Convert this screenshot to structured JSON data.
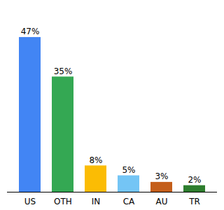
{
  "chart_data": {
    "type": "bar",
    "categories": [
      "US",
      "OTH",
      "IN",
      "CA",
      "AU",
      "TR"
    ],
    "values": [
      47,
      35,
      8,
      5,
      3,
      2
    ],
    "value_labels": [
      "47%",
      "35%",
      "8%",
      "5%",
      "3%",
      "2%"
    ],
    "colors": [
      "#4285f4",
      "#34a853",
      "#fbbc04",
      "#74c5f5",
      "#c45e1a",
      "#2d7d2d"
    ],
    "ylim": [
      0,
      54
    ],
    "data_labels": true,
    "grid": false,
    "tick_labels": "x"
  }
}
